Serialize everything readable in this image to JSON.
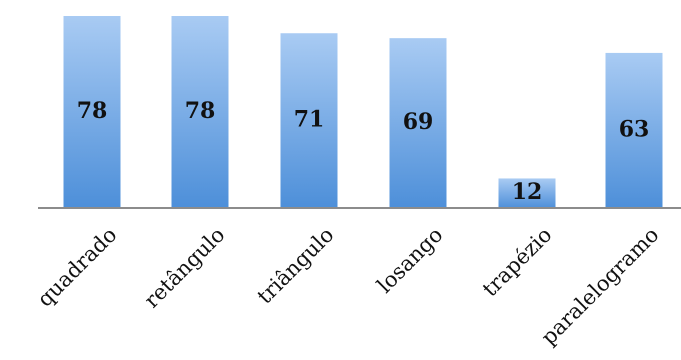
{
  "chart_data": {
    "type": "bar",
    "categories": [
      "quadrado",
      "retângulo",
      "triângulo",
      "losango",
      "trapézio",
      "paralelogramo"
    ],
    "values": [
      78,
      78,
      71,
      69,
      12,
      63
    ],
    "title": "",
    "xlabel": "",
    "ylabel": "",
    "ylim": [
      0,
      78
    ],
    "grid": false,
    "legend": "none",
    "colors": {
      "bar_top": "#a9cbf3",
      "bar_bottom": "#4d8fd9",
      "axis": "#8c8c8c",
      "text": "#111111"
    }
  }
}
